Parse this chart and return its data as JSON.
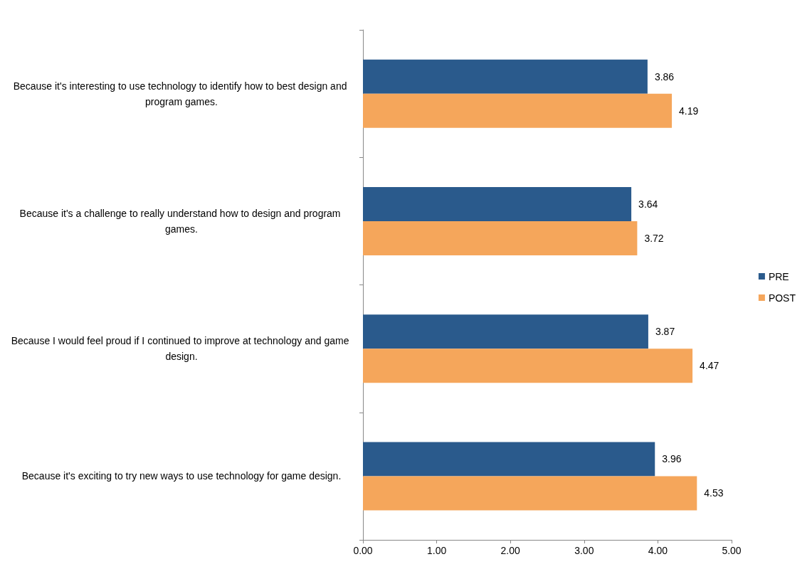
{
  "chart_data": {
    "type": "bar",
    "orientation": "horizontal",
    "categories": [
      "Because it's interesting to use technology to identify how to best design and program games.",
      "Because it's a challenge to really understand how to design and program games.",
      "Because I would feel proud if I continued to improve at technology and game design.",
      "Because it's exciting to try new ways to use technology for game design."
    ],
    "series": [
      {
        "name": "PRE",
        "color": "#2a5a8c",
        "values": [
          3.86,
          3.64,
          3.87,
          3.96
        ]
      },
      {
        "name": "POST",
        "color": "#f5a65b",
        "values": [
          4.19,
          3.72,
          4.47,
          4.53
        ]
      }
    ],
    "xlim": [
      0,
      5
    ],
    "xticks": [
      {
        "value": 0,
        "label": "0.00"
      },
      {
        "value": 1,
        "label": "1.00"
      },
      {
        "value": 2,
        "label": "2.00"
      },
      {
        "value": 3,
        "label": "3.00"
      },
      {
        "value": 4,
        "label": "4.00"
      },
      {
        "value": 5,
        "label": "5.00"
      }
    ],
    "data_labels": true,
    "grid": false,
    "legend": "right"
  }
}
